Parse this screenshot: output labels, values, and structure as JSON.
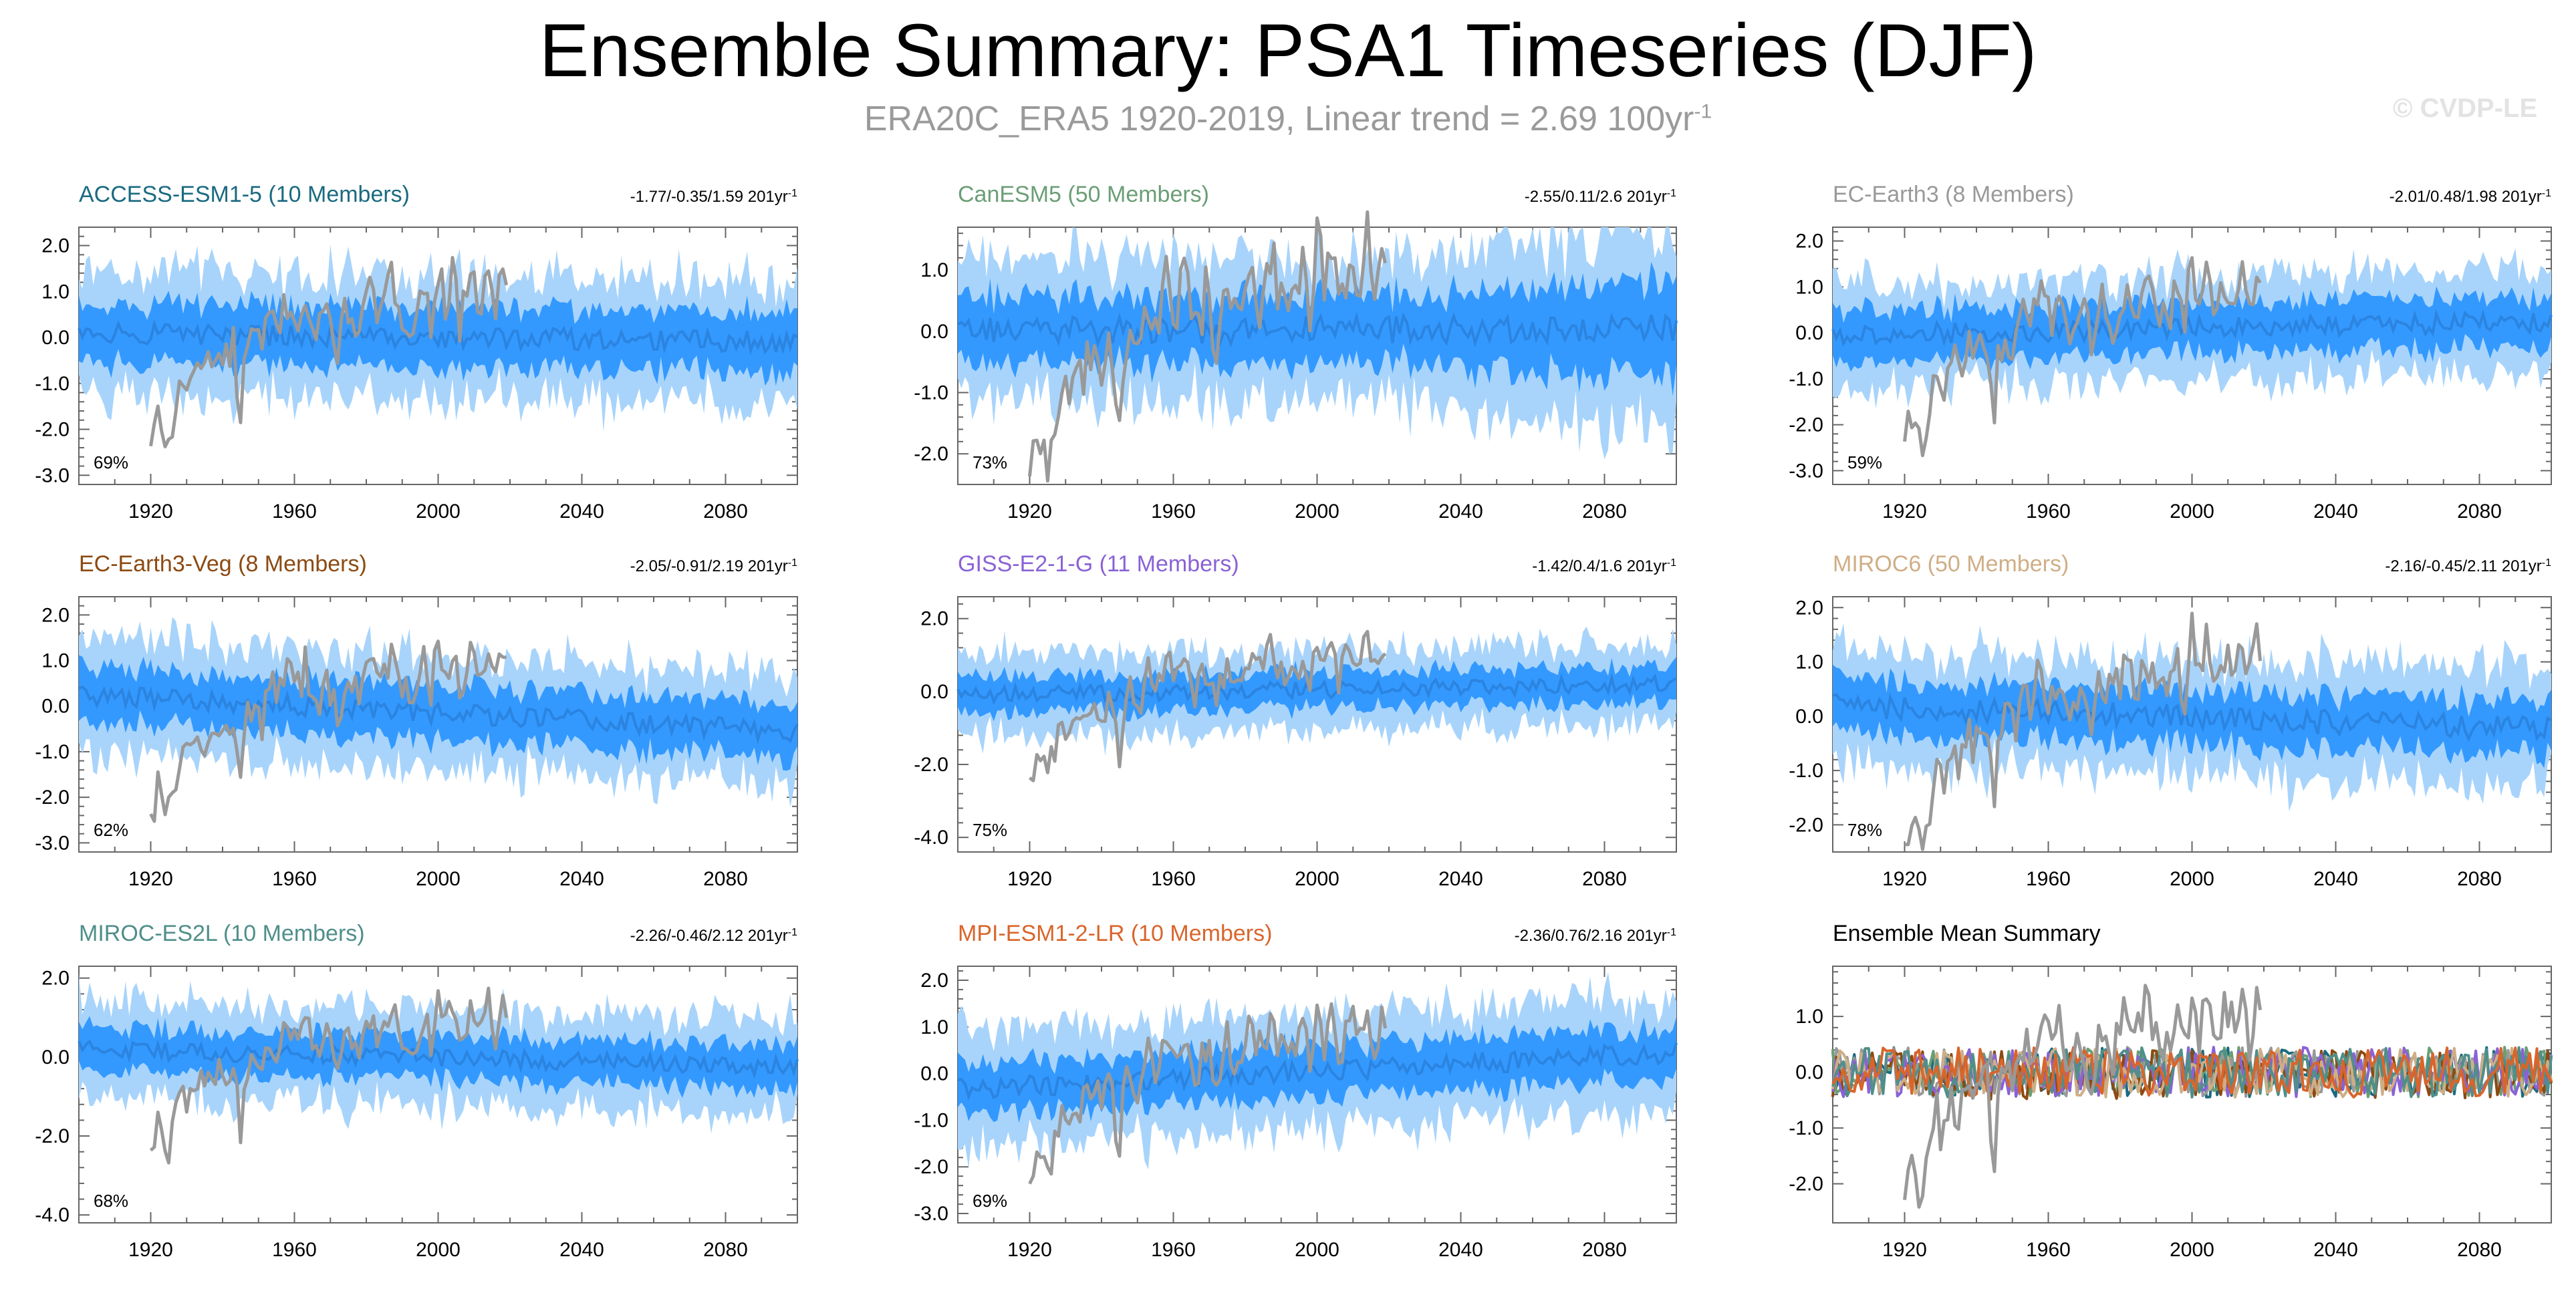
{
  "figure": {
    "title": "Ensemble Summary: PSA1 Timeseries (DJF)",
    "subtitle_prefix": "ERA20C_ERA5 1920-2019, Linear trend = 2.69 100yr",
    "subtitle_exp": "-1",
    "watermark": "© CVDP-LE"
  },
  "colors": {
    "outer_band": "#a8d4fb",
    "inner_band": "#3399ff",
    "ens_mean": "#2b84e0",
    "observed": "#999999",
    "axis": "#666666"
  },
  "chart_data": [
    {
      "type": "area",
      "name": "ACCESS-ESM1-5 (10 Members)",
      "title_color": "#1a6a80",
      "trend_text": "-1.77/-0.35/1.59 201yr",
      "trend_exp": "-1",
      "percent": "69%",
      "xlim": [
        1900,
        2100
      ],
      "ylim": [
        -3.2,
        2.4
      ],
      "yticks": [
        -3.0,
        -2.0,
        -1.0,
        0.0,
        1.0,
        2.0
      ],
      "ytick_labels": [
        "-3.0",
        "-2.0",
        "-1.0",
        "0.0",
        "1.0",
        "2.0"
      ],
      "xticks": [
        1920,
        1960,
        2000,
        2040,
        2080
      ],
      "xtick_labels": [
        "1920",
        "1960",
        "2000",
        "2040",
        "2080"
      ],
      "outer_half": 1.3,
      "inner_half": 0.65,
      "mean_trend": [
        0.1,
        -0.1
      ]
    },
    {
      "type": "area",
      "name": "CanESM5 (50 Members)",
      "title_color": "#6b9e76",
      "trend_text": "-2.55/0.11/2.6 201yr",
      "trend_exp": "-1",
      "percent": "73%",
      "xlim": [
        1900,
        2100
      ],
      "ylim": [
        -2.5,
        1.7
      ],
      "yticks": [
        -2.0,
        -1.0,
        0.0,
        1.0
      ],
      "ytick_labels": [
        "-2.0",
        "-1.0",
        "0.0",
        "1.0"
      ],
      "xticks": [
        1920,
        1960,
        2000,
        2040,
        2080
      ],
      "xtick_labels": [
        "1920",
        "1960",
        "2000",
        "2040",
        "2080"
      ],
      "outer_half": 1.15,
      "inner_half": 0.55,
      "mean_trend": [
        0.0,
        0.05
      ],
      "grow": true
    },
    {
      "type": "area",
      "name": "EC-Earth3 (8 Members)",
      "title_color": "#999999",
      "trend_text": "-2.01/0.48/1.98 201yr",
      "trend_exp": "-1",
      "percent": "59%",
      "xlim": [
        1900,
        2100
      ],
      "ylim": [
        -3.3,
        2.3
      ],
      "yticks": [
        -3.0,
        -2.0,
        -1.0,
        0.0,
        1.0,
        2.0
      ],
      "ytick_labels": [
        "-3.0",
        "-2.0",
        "-1.0",
        "0.0",
        "1.0",
        "2.0"
      ],
      "xticks": [
        1920,
        1960,
        2000,
        2040,
        2080
      ],
      "xtick_labels": [
        "1920",
        "1960",
        "2000",
        "2040",
        "2080"
      ],
      "outer_half": 1.1,
      "inner_half": 0.55,
      "mean_trend": [
        -0.05,
        0.25
      ]
    },
    {
      "type": "area",
      "name": "EC-Earth3-Veg (8 Members)",
      "title_color": "#8c4a12",
      "trend_text": "-2.05/-0.91/2.19 201yr",
      "trend_exp": "-1",
      "percent": "62%",
      "xlim": [
        1900,
        2100
      ],
      "ylim": [
        -3.2,
        2.4
      ],
      "yticks": [
        -3.0,
        -2.0,
        -1.0,
        0.0,
        1.0,
        2.0
      ],
      "ytick_labels": [
        "-3.0",
        "-2.0",
        "-1.0",
        "0.0",
        "1.0",
        "2.0"
      ],
      "xticks": [
        1920,
        1960,
        2000,
        2040,
        2080
      ],
      "xtick_labels": [
        "1920",
        "1960",
        "2000",
        "2040",
        "2080"
      ],
      "outer_half": 1.2,
      "inner_half": 0.6,
      "mean_trend": [
        0.25,
        -0.55
      ]
    },
    {
      "type": "area",
      "name": "GISS-E2-1-G (11 Members)",
      "title_color": "#8a62d6",
      "trend_text": "-1.42/0.4/1.6 201yr",
      "trend_exp": "-1",
      "percent": "75%",
      "xlim": [
        1900,
        2100
      ],
      "ylim": [
        -4.4,
        2.6
      ],
      "yticks": [
        -4.0,
        -2.0,
        0.0,
        2.0
      ],
      "ytick_labels": [
        "-4.0",
        "-2.0",
        "0.0",
        "2.0"
      ],
      "xticks": [
        1920,
        1960,
        2000,
        2040,
        2080
      ],
      "xtick_labels": [
        "1920",
        "1960",
        "2000",
        "2040",
        "2080"
      ],
      "outer_half": 1.1,
      "inner_half": 0.5,
      "mean_trend": [
        -0.1,
        0.2
      ]
    },
    {
      "type": "area",
      "name": "MIROC6 (50 Members)",
      "title_color": "#cfae86",
      "trend_text": "-2.16/-0.45/2.11 201yr",
      "trend_exp": "-1",
      "percent": "78%",
      "xlim": [
        1900,
        2100
      ],
      "ylim": [
        -2.5,
        2.2
      ],
      "yticks": [
        -2.0,
        -1.0,
        0.0,
        1.0,
        2.0
      ],
      "ytick_labels": [
        "-2.0",
        "-1.0",
        "0.0",
        "1.0",
        "2.0"
      ],
      "xticks": [
        1920,
        1960,
        2000,
        2040,
        2080
      ],
      "xtick_labels": [
        "1920",
        "1960",
        "2000",
        "2040",
        "2080"
      ],
      "outer_half": 1.05,
      "inner_half": 0.5,
      "mean_trend": [
        0.2,
        -0.25
      ]
    },
    {
      "type": "area",
      "name": "MIROC-ES2L (10 Members)",
      "title_color": "#4f8f8a",
      "trend_text": "-2.26/-0.46/2.12 201yr",
      "trend_exp": "-1",
      "percent": "68%",
      "xlim": [
        1900,
        2100
      ],
      "ylim": [
        -4.2,
        2.3
      ],
      "yticks": [
        -4.0,
        -2.0,
        0.0,
        2.0
      ],
      "ytick_labels": [
        "-4.0",
        "-2.0",
        "0.0",
        "2.0"
      ],
      "xticks": [
        1920,
        1960,
        2000,
        2040,
        2080
      ],
      "xtick_labels": [
        "1920",
        "1960",
        "2000",
        "2040",
        "2080"
      ],
      "outer_half": 1.2,
      "inner_half": 0.55,
      "mean_trend": [
        0.2,
        -0.25
      ]
    },
    {
      "type": "area",
      "name": "MPI-ESM1-2-LR (10 Members)",
      "title_color": "#d9652b",
      "trend_text": "-2.36/0.76/2.16 201yr",
      "trend_exp": "-1",
      "percent": "69%",
      "xlim": [
        1900,
        2100
      ],
      "ylim": [
        -3.2,
        2.3
      ],
      "yticks": [
        -3.0,
        -2.0,
        -1.0,
        0.0,
        1.0,
        2.0
      ],
      "ytick_labels": [
        "-3.0",
        "-2.0",
        "-1.0",
        "0.0",
        "1.0",
        "2.0"
      ],
      "xticks": [
        1920,
        1960,
        2000,
        2040,
        2080
      ],
      "xtick_labels": [
        "1920",
        "1960",
        "2000",
        "2040",
        "2080"
      ],
      "outer_half": 1.2,
      "inner_half": 0.55,
      "mean_trend": [
        -0.35,
        0.45
      ]
    },
    {
      "type": "line",
      "name": "Ensemble Mean Summary",
      "title_color": "#000000",
      "xlim": [
        1900,
        2100
      ],
      "ylim": [
        -2.7,
        1.9
      ],
      "yticks": [
        -2.0,
        -1.0,
        0.0,
        1.0
      ],
      "ytick_labels": [
        "-2.0",
        "-1.0",
        "0.0",
        "1.0"
      ],
      "xticks": [
        1920,
        1960,
        2000,
        2040,
        2080
      ],
      "xtick_labels": [
        "1920",
        "1960",
        "2000",
        "2040",
        "2080"
      ],
      "series_colors": [
        "#1a6a80",
        "#6b9e76",
        "#999999",
        "#8c4a12",
        "#8a62d6",
        "#cfae86",
        "#4f8f8a",
        "#d9652b"
      ]
    }
  ],
  "observed_anchor": [
    [
      1920,
      -2.4
    ],
    [
      1922,
      -1.8
    ],
    [
      1925,
      -2.3
    ],
    [
      1927,
      -1.6
    ],
    [
      1929,
      -0.8
    ],
    [
      1931,
      -1.2
    ],
    [
      1933,
      -0.5
    ],
    [
      1935,
      -0.7
    ],
    [
      1937,
      -0.3
    ],
    [
      1940,
      -0.6
    ],
    [
      1943,
      -0.2
    ],
    [
      1945,
      -1.9
    ],
    [
      1946,
      -0.6
    ],
    [
      1948,
      0.0
    ],
    [
      1951,
      -0.3
    ],
    [
      1953,
      0.5
    ],
    [
      1955,
      0.2
    ],
    [
      1958,
      0.8
    ],
    [
      1961,
      0.3
    ],
    [
      1963,
      0.9
    ],
    [
      1966,
      -0.1
    ],
    [
      1969,
      0.6
    ],
    [
      1972,
      -0.2
    ],
    [
      1975,
      0.7
    ],
    [
      1978,
      0.2
    ],
    [
      1981,
      0.9
    ],
    [
      1984,
      0.5
    ],
    [
      1987,
      1.2
    ],
    [
      1990,
      0.6
    ],
    [
      1993,
      0.3
    ],
    [
      1996,
      1.0
    ],
    [
      1998,
      0.4
    ],
    [
      2000,
      1.6
    ],
    [
      2002,
      0.7
    ],
    [
      2004,
      1.4
    ],
    [
      2006,
      0.3
    ],
    [
      2009,
      1.1
    ],
    [
      2012,
      0.8
    ],
    [
      2014,
      1.5
    ],
    [
      2016,
      0.6
    ],
    [
      2018,
      1.3
    ],
    [
      2019,
      1.2
    ]
  ]
}
